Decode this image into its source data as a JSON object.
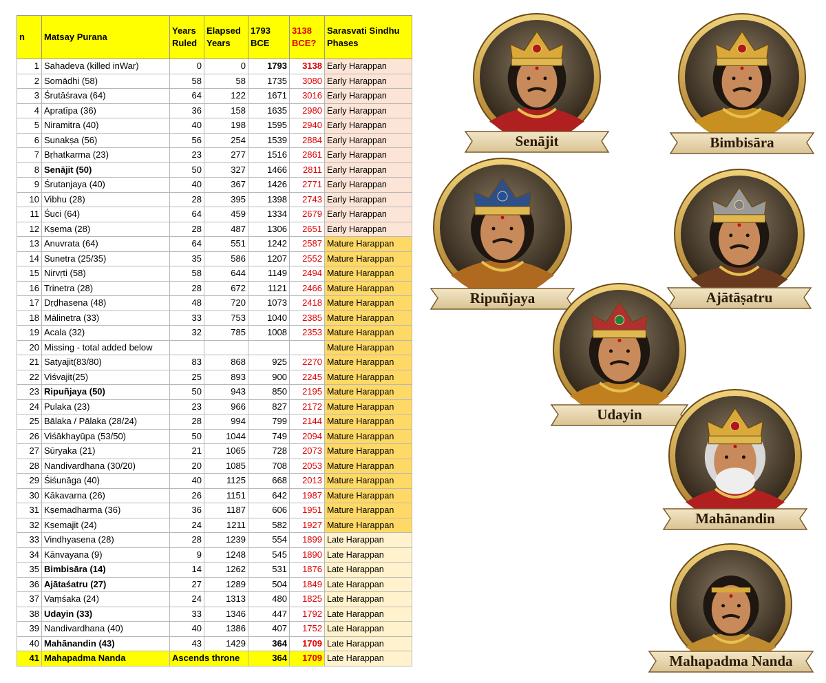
{
  "table": {
    "headers": [
      "n",
      "Matsay Purana",
      "Years Ruled",
      "Elapsed Years",
      "1793 BCE",
      "3138 BCE?",
      "Sarasvati Sindhu Phases"
    ],
    "phases": [
      {
        "name": "Early Harappan",
        "color": "#fce4d6"
      },
      {
        "name": "Mature Harappan",
        "color": "#ffd966"
      },
      {
        "name": "Late Harappan",
        "color": "#fff2cc"
      }
    ],
    "rows": [
      {
        "n": 1,
        "name": "Sahadeva (killed inWar)",
        "ruled": 0,
        "elapsed": 0,
        "bce1793": 1793,
        "bce3138": 3138,
        "phase": 0,
        "bold_dates": true
      },
      {
        "n": 2,
        "name": "Somādhi (58)",
        "ruled": 58,
        "elapsed": 58,
        "bce1793": 1735,
        "bce3138": 3080,
        "phase": 0
      },
      {
        "n": 3,
        "name": "Śrutāśrava (64)",
        "ruled": 64,
        "elapsed": 122,
        "bce1793": 1671,
        "bce3138": 3016,
        "phase": 0
      },
      {
        "n": 4,
        "name": "Apratīpa (36)",
        "ruled": 36,
        "elapsed": 158,
        "bce1793": 1635,
        "bce3138": 2980,
        "phase": 0
      },
      {
        "n": 5,
        "name": "Niramitra (40)",
        "ruled": 40,
        "elapsed": 198,
        "bce1793": 1595,
        "bce3138": 2940,
        "phase": 0
      },
      {
        "n": 6,
        "name": "Sunakṣa (56)",
        "ruled": 56,
        "elapsed": 254,
        "bce1793": 1539,
        "bce3138": 2884,
        "phase": 0
      },
      {
        "n": 7,
        "name": "Bṛhatkarma (23)",
        "ruled": 23,
        "elapsed": 277,
        "bce1793": 1516,
        "bce3138": 2861,
        "phase": 0
      },
      {
        "n": 8,
        "name": "Senājit (50)",
        "ruled": 50,
        "elapsed": 327,
        "bce1793": 1466,
        "bce3138": 2811,
        "phase": 0,
        "bold": true
      },
      {
        "n": 9,
        "name": "Śrutanjaya (40)",
        "ruled": 40,
        "elapsed": 367,
        "bce1793": 1426,
        "bce3138": 2771,
        "phase": 0
      },
      {
        "n": 10,
        "name": "Vibhu (28)",
        "ruled": 28,
        "elapsed": 395,
        "bce1793": 1398,
        "bce3138": 2743,
        "phase": 0
      },
      {
        "n": 11,
        "name": "Śuci (64)",
        "ruled": 64,
        "elapsed": 459,
        "bce1793": 1334,
        "bce3138": 2679,
        "phase": 0
      },
      {
        "n": 12,
        "name": "Kṣema (28)",
        "ruled": 28,
        "elapsed": 487,
        "bce1793": 1306,
        "bce3138": 2651,
        "phase": 0
      },
      {
        "n": 13,
        "name": "Anuvrata (64)",
        "ruled": 64,
        "elapsed": 551,
        "bce1793": 1242,
        "bce3138": 2587,
        "phase": 1
      },
      {
        "n": 14,
        "name": "Sunetra (25/35)",
        "ruled": 35,
        "elapsed": 586,
        "bce1793": 1207,
        "bce3138": 2552,
        "phase": 1
      },
      {
        "n": 15,
        "name": "Nirvṛti (58)",
        "ruled": 58,
        "elapsed": 644,
        "bce1793": 1149,
        "bce3138": 2494,
        "phase": 1
      },
      {
        "n": 16,
        "name": "Trinetra (28)",
        "ruled": 28,
        "elapsed": 672,
        "bce1793": 1121,
        "bce3138": 2466,
        "phase": 1
      },
      {
        "n": 17,
        "name": "Dṛḍhasena (48)",
        "ruled": 48,
        "elapsed": 720,
        "bce1793": 1073,
        "bce3138": 2418,
        "phase": 1
      },
      {
        "n": 18,
        "name": "Mālinetra (33)",
        "ruled": 33,
        "elapsed": 753,
        "bce1793": 1040,
        "bce3138": 2385,
        "phase": 1
      },
      {
        "n": 19,
        "name": "Acala (32)",
        "ruled": 32,
        "elapsed": 785,
        "bce1793": 1008,
        "bce3138": 2353,
        "phase": 1
      },
      {
        "n": 20,
        "name": "Missing - total added below",
        "ruled": null,
        "elapsed": null,
        "bce1793": null,
        "bce3138": null,
        "phase": 1
      },
      {
        "n": 21,
        "name": "Satyajit(83/80)",
        "ruled": 83,
        "elapsed": 868,
        "bce1793": 925,
        "bce3138": 2270,
        "phase": 1
      },
      {
        "n": 22,
        "name": "Viśvajit(25)",
        "ruled": 25,
        "elapsed": 893,
        "bce1793": 900,
        "bce3138": 2245,
        "phase": 1
      },
      {
        "n": 23,
        "name": "Ripuñjaya (50)",
        "ruled": 50,
        "elapsed": 943,
        "bce1793": 850,
        "bce3138": 2195,
        "phase": 1,
        "bold": true
      },
      {
        "n": 24,
        "name": "Pulaka (23)",
        "ruled": 23,
        "elapsed": 966,
        "bce1793": 827,
        "bce3138": 2172,
        "phase": 1
      },
      {
        "n": 25,
        "name": "Bālaka / Pālaka (28/24)",
        "ruled": 28,
        "elapsed": 994,
        "bce1793": 799,
        "bce3138": 2144,
        "phase": 1
      },
      {
        "n": 26,
        "name": "Viśākhayūpa (53/50)",
        "ruled": 50,
        "elapsed": 1044,
        "bce1793": 749,
        "bce3138": 2094,
        "phase": 1
      },
      {
        "n": 27,
        "name": "Sūryaka (21)",
        "ruled": 21,
        "elapsed": 1065,
        "bce1793": 728,
        "bce3138": 2073,
        "phase": 1
      },
      {
        "n": 28,
        "name": "Nandivardhana (30/20)",
        "ruled": 20,
        "elapsed": 1085,
        "bce1793": 708,
        "bce3138": 2053,
        "phase": 1
      },
      {
        "n": 29,
        "name": "Śiśunāga (40)",
        "ruled": 40,
        "elapsed": 1125,
        "bce1793": 668,
        "bce3138": 2013,
        "phase": 1
      },
      {
        "n": 30,
        "name": "Kākavarna (26)",
        "ruled": 26,
        "elapsed": 1151,
        "bce1793": 642,
        "bce3138": 1987,
        "phase": 1
      },
      {
        "n": 31,
        "name": "Kṣemadharma (36)",
        "ruled": 36,
        "elapsed": 1187,
        "bce1793": 606,
        "bce3138": 1951,
        "phase": 1
      },
      {
        "n": 32,
        "name": "Kṣemajit (24)",
        "ruled": 24,
        "elapsed": 1211,
        "bce1793": 582,
        "bce3138": 1927,
        "phase": 1
      },
      {
        "n": 33,
        "name": "Vindhyasena (28)",
        "ruled": 28,
        "elapsed": 1239,
        "bce1793": 554,
        "bce3138": 1899,
        "phase": 2
      },
      {
        "n": 34,
        "name": "Kānvayana (9)",
        "ruled": 9,
        "elapsed": 1248,
        "bce1793": 545,
        "bce3138": 1890,
        "phase": 2
      },
      {
        "n": 35,
        "name": "Bimbisāra (14)",
        "ruled": 14,
        "elapsed": 1262,
        "bce1793": 531,
        "bce3138": 1876,
        "phase": 2,
        "bold": true
      },
      {
        "n": 36,
        "name": "Ajātaśatru (27)",
        "ruled": 27,
        "elapsed": 1289,
        "bce1793": 504,
        "bce3138": 1849,
        "phase": 2,
        "bold": true
      },
      {
        "n": 37,
        "name": "Vaṃśaka (24)",
        "ruled": 24,
        "elapsed": 1313,
        "bce1793": 480,
        "bce3138": 1825,
        "phase": 2
      },
      {
        "n": 38,
        "name": "Udayin (33)",
        "ruled": 33,
        "elapsed": 1346,
        "bce1793": 447,
        "bce3138": 1792,
        "phase": 2,
        "bold": true
      },
      {
        "n": 39,
        "name": "Nandivardhana (40)",
        "ruled": 40,
        "elapsed": 1386,
        "bce1793": 407,
        "bce3138": 1752,
        "phase": 2
      },
      {
        "n": 40,
        "name": "Mahānandin (43)",
        "ruled": 43,
        "elapsed": 1429,
        "bce1793": 364,
        "bce3138": 1709,
        "phase": 2,
        "bold": true,
        "bold_dates": true
      },
      {
        "n": 41,
        "name": "Mahapadma Nanda",
        "note": "Ascends throne",
        "bce1793": 364,
        "bce3138": 1709,
        "phase": 2,
        "highlight": true
      }
    ]
  },
  "portraits": [
    "Senājit",
    "Bimbisāra",
    "Ripuñjaya",
    "Ajātāṣatru",
    "Udayin",
    "Mahānandin",
    "Mahapadma Nanda"
  ]
}
